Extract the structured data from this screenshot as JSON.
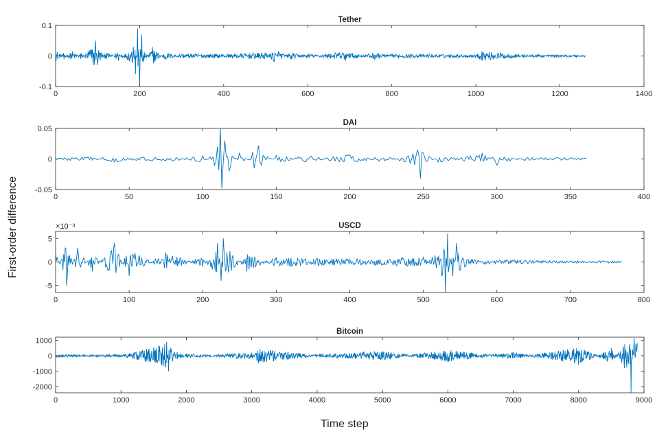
{
  "figure": {
    "ylabel": "First-order difference",
    "xlabel": "Time step",
    "line_color": "#0072BD"
  },
  "chart_data": [
    {
      "type": "line",
      "title": "Tether",
      "xlim": [
        0,
        1400
      ],
      "ylim": [
        -0.1,
        0.1
      ],
      "xticks": [
        0,
        200,
        400,
        600,
        800,
        1000,
        1200,
        1400
      ],
      "yticks": [
        -0.1,
        0,
        0.1
      ],
      "ytick_labels": [
        "-0.1",
        "0",
        "0.1"
      ],
      "exponent_label": "",
      "n_points": 1262,
      "x": [
        0,
        20,
        40,
        60,
        80,
        95,
        100,
        120,
        150,
        185,
        190,
        195,
        200,
        205,
        210,
        230,
        260,
        300,
        400,
        500,
        520,
        530,
        560,
        600,
        690,
        700,
        760,
        800,
        1000,
        1015,
        1100,
        1262
      ],
      "y": [
        0.02,
        -0.01,
        0.015,
        -0.01,
        0.02,
        0.05,
        -0.03,
        0.01,
        -0.015,
        0.03,
        -0.06,
        0.09,
        -0.1,
        0.07,
        -0.02,
        0.03,
        -0.01,
        0.005,
        0.003,
        0.01,
        -0.02,
        0.015,
        -0.01,
        0.005,
        -0.015,
        0.01,
        -0.01,
        0.003,
        0.002,
        0.015,
        0.002,
        0.0
      ]
    },
    {
      "type": "line",
      "title": "DAI",
      "xlim": [
        0,
        400
      ],
      "ylim": [
        -0.05,
        0.05
      ],
      "xticks": [
        0,
        50,
        100,
        150,
        200,
        250,
        300,
        350,
        400
      ],
      "yticks": [
        -0.05,
        0,
        0.05
      ],
      "ytick_labels": [
        "-0.05",
        "0",
        "0.05"
      ],
      "exponent_label": "",
      "n_points": 361,
      "x": [
        0,
        20,
        40,
        60,
        80,
        100,
        108,
        110,
        112,
        113,
        115,
        118,
        125,
        135,
        138,
        140,
        150,
        170,
        200,
        220,
        240,
        246,
        248,
        250,
        260,
        280,
        290,
        300,
        305,
        320,
        361
      ],
      "y": [
        0.0,
        0.003,
        -0.005,
        0.003,
        -0.003,
        0.005,
        -0.01,
        0.02,
        0.05,
        -0.048,
        0.03,
        -0.02,
        0.01,
        -0.015,
        0.022,
        -0.01,
        0.006,
        -0.005,
        0.007,
        -0.004,
        0.005,
        0.015,
        -0.032,
        0.01,
        -0.005,
        0.004,
        0.01,
        -0.01,
        0.003,
        0.001,
        0.0
      ]
    },
    {
      "type": "line",
      "title": "USCD",
      "xlim": [
        0,
        800
      ],
      "ylim": [
        -0.0065,
        0.0065
      ],
      "xticks": [
        0,
        100,
        200,
        300,
        400,
        500,
        600,
        700,
        800
      ],
      "yticks": [
        -0.005,
        0,
        0.005
      ],
      "ytick_labels": [
        "-5",
        "0",
        "5"
      ],
      "exponent_label": "×10⁻³",
      "n_points": 770,
      "x": [
        0,
        15,
        30,
        50,
        80,
        100,
        150,
        200,
        220,
        225,
        228,
        260,
        300,
        400,
        500,
        525,
        530,
        533,
        540,
        545,
        560,
        600,
        700,
        770
      ],
      "y": [
        0.002,
        -0.005,
        0.003,
        -0.002,
        0.004,
        -0.003,
        0.002,
        -0.001,
        0.004,
        -0.004,
        0.005,
        -0.002,
        0.001,
        0.0005,
        0.001,
        -0.003,
        -0.0065,
        0.006,
        -0.003,
        0.004,
        0.0005,
        0.0003,
        0.0,
        0.0
      ]
    },
    {
      "type": "line",
      "title": "Bitcoin",
      "xlim": [
        0,
        9000
      ],
      "ylim": [
        -2400,
        1200
      ],
      "xticks": [
        0,
        1000,
        2000,
        3000,
        4000,
        5000,
        6000,
        7000,
        8000,
        9000
      ],
      "yticks": [
        -2000,
        -1000,
        0,
        1000
      ],
      "ytick_labels": [
        "-2000",
        "-1000",
        "0",
        "1000"
      ],
      "exponent_label": "",
      "n_points": 8900,
      "x": [
        0,
        1000,
        1700,
        1730,
        1760,
        2000,
        3000,
        3100,
        4000,
        5000,
        6000,
        7000,
        8000,
        8500,
        8700,
        8800,
        8850,
        8900
      ],
      "y": [
        50,
        -50,
        900,
        -1000,
        500,
        -100,
        200,
        -500,
        50,
        300,
        -400,
        200,
        -600,
        500,
        -800,
        -2400,
        1150,
        800
      ]
    }
  ]
}
